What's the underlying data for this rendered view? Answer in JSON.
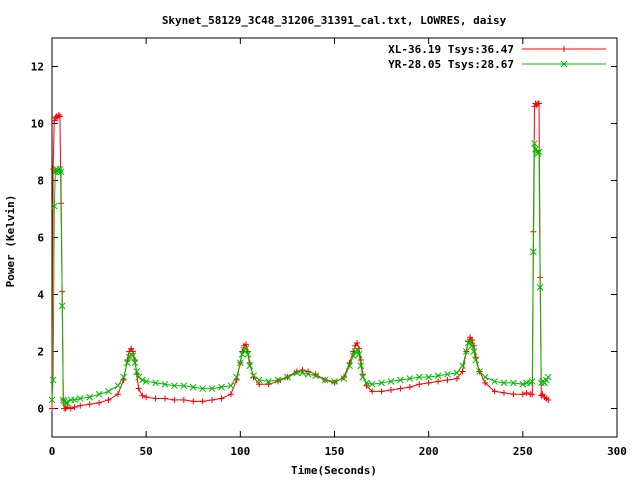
{
  "chart_data": {
    "type": "line",
    "title": "Skynet_58129_3C48_31206_31391_cal.txt, LOWRES, daisy",
    "xlabel": "Time(Seconds)",
    "ylabel": "Power (Kelvin)",
    "xlim": [
      0,
      300
    ],
    "ylim": [
      -1,
      13
    ],
    "xticks": [
      0,
      50,
      100,
      150,
      200,
      250,
      300
    ],
    "yticks": [
      0,
      2,
      4,
      6,
      8,
      10,
      12
    ],
    "legend_position": "top-right",
    "series": [
      {
        "name": "XL-36.19 Tsys:36.47",
        "color": "#ff0000",
        "marker": "plus",
        "x": [
          0,
          0.6,
          1.2,
          1.8,
          2.4,
          3.0,
          3.6,
          4.2,
          4.8,
          5.4,
          6.0,
          6.5,
          7.2,
          8,
          10,
          12,
          15,
          20,
          25,
          30,
          35,
          38,
          40,
          41,
          42,
          43,
          44,
          45,
          46,
          48,
          50,
          55,
          60,
          65,
          70,
          75,
          80,
          85,
          90,
          95,
          98,
          100,
          101,
          102,
          103,
          104,
          105,
          107,
          110,
          115,
          120,
          125,
          130,
          133,
          136,
          140,
          145,
          150,
          155,
          158,
          160,
          161,
          162,
          163,
          164,
          165,
          167,
          170,
          175,
          180,
          185,
          190,
          195,
          200,
          205,
          210,
          215,
          218,
          220,
          221,
          222,
          223,
          224,
          225,
          227,
          230,
          235,
          240,
          245,
          250,
          252,
          254,
          255,
          255.6,
          256.2,
          256.8,
          257.4,
          258,
          258.6,
          259.2,
          259.8,
          260.5,
          261.5,
          262.5,
          263.5
        ],
        "y": [
          0,
          8.4,
          10.1,
          10.2,
          10.25,
          10.2,
          10.3,
          10.25,
          7.2,
          4.1,
          0.3,
          0,
          0,
          0.05,
          0,
          0.05,
          0.1,
          0.15,
          0.2,
          0.3,
          0.5,
          1.0,
          1.7,
          2.0,
          2.1,
          2.0,
          1.7,
          1.2,
          0.7,
          0.45,
          0.4,
          0.35,
          0.35,
          0.3,
          0.3,
          0.25,
          0.25,
          0.3,
          0.35,
          0.5,
          1.0,
          1.6,
          2.0,
          2.2,
          2.25,
          2.0,
          1.6,
          1.1,
          0.85,
          0.85,
          0.95,
          1.1,
          1.3,
          1.35,
          1.3,
          1.2,
          1.0,
          0.9,
          1.1,
          1.6,
          2.0,
          2.2,
          2.3,
          2.1,
          1.7,
          1.2,
          0.8,
          0.6,
          0.6,
          0.65,
          0.7,
          0.75,
          0.85,
          0.9,
          0.95,
          1.0,
          1.05,
          1.3,
          2.0,
          2.35,
          2.5,
          2.4,
          2.2,
          1.8,
          1.3,
          0.9,
          0.6,
          0.55,
          0.5,
          0.5,
          0.55,
          0.5,
          0.5,
          6.2,
          10.6,
          10.7,
          10.65,
          10.7,
          10.7,
          4.6,
          0.45,
          0.5,
          0.4,
          0.35,
          0.3
        ]
      },
      {
        "name": "YR-28.05 Tsys:28.67",
        "color": "#00bb00",
        "marker": "cross",
        "x": [
          0,
          0.6,
          1.2,
          1.8,
          2.4,
          3.0,
          3.6,
          4.2,
          4.8,
          5.4,
          6.0,
          6.5,
          7.2,
          8,
          10,
          12,
          15,
          20,
          25,
          30,
          35,
          38,
          40,
          41,
          42,
          43,
          44,
          45,
          46,
          48,
          50,
          55,
          60,
          65,
          70,
          75,
          80,
          85,
          90,
          95,
          98,
          100,
          101,
          102,
          103,
          104,
          105,
          107,
          110,
          115,
          120,
          125,
          130,
          133,
          136,
          140,
          145,
          150,
          155,
          158,
          160,
          161,
          162,
          163,
          164,
          165,
          167,
          170,
          175,
          180,
          185,
          190,
          195,
          200,
          205,
          210,
          215,
          218,
          220,
          221,
          222,
          223,
          224,
          225,
          227,
          230,
          235,
          240,
          245,
          250,
          252,
          254,
          255,
          255.6,
          256.2,
          256.8,
          257.4,
          258,
          258.6,
          259.2,
          259.8,
          260.5,
          261.5,
          262.5,
          263.5
        ],
        "y": [
          0.3,
          1.0,
          7.1,
          8.3,
          8.4,
          8.35,
          8.3,
          8.4,
          8.3,
          3.6,
          0.3,
          0.25,
          0.2,
          0.2,
          0.3,
          0.3,
          0.35,
          0.4,
          0.5,
          0.6,
          0.8,
          1.1,
          1.6,
          1.8,
          1.9,
          1.85,
          1.6,
          1.3,
          1.1,
          1.0,
          0.95,
          0.9,
          0.85,
          0.8,
          0.8,
          0.75,
          0.7,
          0.7,
          0.75,
          0.8,
          1.1,
          1.6,
          1.9,
          2.05,
          2.1,
          1.9,
          1.5,
          1.15,
          1.0,
          0.95,
          1.0,
          1.1,
          1.25,
          1.25,
          1.2,
          1.15,
          1.0,
          0.95,
          1.05,
          1.5,
          1.85,
          2.0,
          2.05,
          1.9,
          1.5,
          1.1,
          0.9,
          0.85,
          0.9,
          0.95,
          1.0,
          1.05,
          1.1,
          1.1,
          1.15,
          1.2,
          1.25,
          1.5,
          2.0,
          2.3,
          2.35,
          2.2,
          2.0,
          1.7,
          1.3,
          1.1,
          0.95,
          0.9,
          0.9,
          0.85,
          0.9,
          0.9,
          0.95,
          5.5,
          9.3,
          9.1,
          9.0,
          8.95,
          9.0,
          4.25,
          0.9,
          0.95,
          0.9,
          1.0,
          1.1
        ]
      }
    ]
  }
}
